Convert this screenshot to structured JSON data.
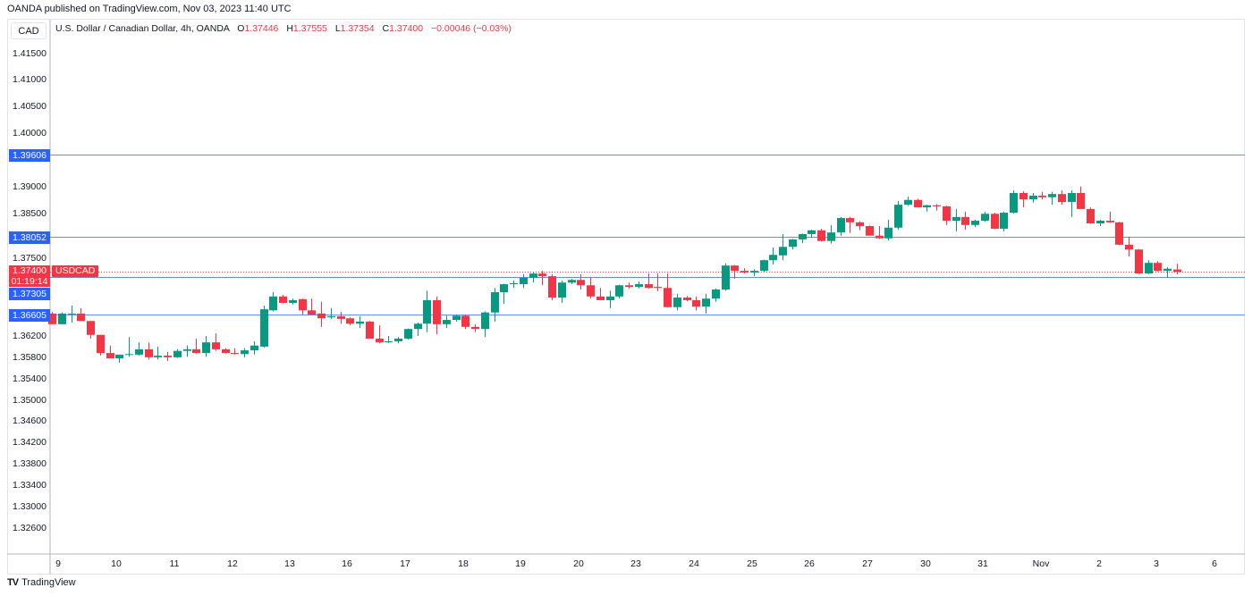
{
  "header": {
    "published": "OANDA published on TradingView.com, Nov 03, 2023 11:40 UTC"
  },
  "currency_box": "CAD",
  "legend": {
    "title": "U.S. Dollar / Canadian Dollar, 4h, OANDA",
    "o_label": "O",
    "o_value": "1.37446",
    "h_label": "H",
    "h_value": "1.37555",
    "l_label": "L",
    "l_value": "1.37354",
    "c_label": "C",
    "c_value": "1.37400",
    "change": "−0.00046 (−0.03%)"
  },
  "price_label": {
    "price": "1.37400",
    "countdown": "01:19:14",
    "symbol": "USDCAD"
  },
  "footer": {
    "logo": "TV",
    "brand": "TradingView"
  },
  "colors": {
    "up": "#089981",
    "down": "#f23645",
    "level": "#2962ff",
    "level_line": "#5b8ff9"
  },
  "chart_data": {
    "type": "candlestick",
    "title": "U.S. Dollar / Canadian Dollar, 4h, OANDA",
    "symbol": "USDCAD",
    "timeframe": "4h",
    "ylim": [
      1.3235,
      1.4195
    ],
    "y_ticks": [
      "1.41500",
      "1.41000",
      "1.40500",
      "1.40000",
      "1.39000",
      "1.38500",
      "1.37500",
      "1.36200",
      "1.35800",
      "1.35400",
      "1.35000",
      "1.34600",
      "1.34200",
      "1.33800",
      "1.33400",
      "1.33000",
      "1.32600"
    ],
    "x_ticks": [
      "9",
      "10",
      "11",
      "12",
      "13",
      "16",
      "17",
      "18",
      "19",
      "20",
      "23",
      "24",
      "25",
      "26",
      "27",
      "30",
      "31",
      "Nov",
      "2",
      "3",
      "6"
    ],
    "horizontal_levels": [
      {
        "value": 1.39606,
        "label": "1.39606"
      },
      {
        "value": 1.38052,
        "label": "1.38052"
      },
      {
        "value": 1.37305,
        "label": "1.37305"
      },
      {
        "value": 1.36605,
        "label": "1.36605"
      }
    ],
    "last_price": 1.374,
    "candles_ohlc": [
      [
        1.3662,
        1.3665,
        1.3642,
        1.3642
      ],
      [
        1.3642,
        1.3664,
        1.3642,
        1.3662
      ],
      [
        1.3662,
        1.3677,
        1.3645,
        1.3662
      ],
      [
        1.3662,
        1.3672,
        1.3648,
        1.3648
      ],
      [
        1.3648,
        1.3648,
        1.3615,
        1.3622
      ],
      [
        1.3622,
        1.3622,
        1.3583,
        1.3588
      ],
      [
        1.3588,
        1.3602,
        1.3578,
        1.3578
      ],
      [
        1.3578,
        1.3585,
        1.357,
        1.3585
      ],
      [
        1.3585,
        1.3618,
        1.3581,
        1.3586
      ],
      [
        1.3585,
        1.3608,
        1.3583,
        1.3595
      ],
      [
        1.3595,
        1.3608,
        1.3576,
        1.358
      ],
      [
        1.358,
        1.36,
        1.3576,
        1.3583
      ],
      [
        1.3583,
        1.359,
        1.3573,
        1.358
      ],
      [
        1.358,
        1.3595,
        1.3579,
        1.3592
      ],
      [
        1.3592,
        1.3602,
        1.3581,
        1.3595
      ],
      [
        1.3595,
        1.3615,
        1.3587,
        1.3588
      ],
      [
        1.3588,
        1.362,
        1.3581,
        1.3608
      ],
      [
        1.3608,
        1.3625,
        1.3592,
        1.3595
      ],
      [
        1.3595,
        1.3597,
        1.3587,
        1.3588
      ],
      [
        1.3588,
        1.3597,
        1.3585,
        1.3586
      ],
      [
        1.3586,
        1.3597,
        1.358,
        1.3593
      ],
      [
        1.3593,
        1.361,
        1.3585,
        1.3602
      ],
      [
        1.36,
        1.3677,
        1.3598,
        1.367
      ],
      [
        1.3668,
        1.3702,
        1.3666,
        1.3694
      ],
      [
        1.3694,
        1.3697,
        1.3681,
        1.3682
      ],
      [
        1.3682,
        1.369,
        1.3679,
        1.3687
      ],
      [
        1.3689,
        1.369,
        1.366,
        1.3668
      ],
      [
        1.3668,
        1.369,
        1.3659,
        1.366
      ],
      [
        1.3662,
        1.3684,
        1.3637,
        1.3653
      ],
      [
        1.3655,
        1.3672,
        1.3652,
        1.3657
      ],
      [
        1.3657,
        1.3665,
        1.3643,
        1.3652
      ],
      [
        1.3653,
        1.3655,
        1.364,
        1.3643
      ],
      [
        1.3643,
        1.3657,
        1.3635,
        1.3647
      ],
      [
        1.3647,
        1.3648,
        1.3615,
        1.3615
      ],
      [
        1.3615,
        1.364,
        1.3606,
        1.3608
      ],
      [
        1.3608,
        1.362,
        1.3607,
        1.361
      ],
      [
        1.361,
        1.3618,
        1.3606,
        1.3615
      ],
      [
        1.3615,
        1.3634,
        1.3613,
        1.3633
      ],
      [
        1.3633,
        1.3645,
        1.362,
        1.3643
      ],
      [
        1.3643,
        1.3705,
        1.3627,
        1.3687
      ],
      [
        1.3687,
        1.3694,
        1.3623,
        1.3642
      ],
      [
        1.3642,
        1.3658,
        1.3635,
        1.365
      ],
      [
        1.365,
        1.366,
        1.3647,
        1.3658
      ],
      [
        1.3658,
        1.366,
        1.3633,
        1.3637
      ],
      [
        1.3637,
        1.3642,
        1.3627,
        1.3633
      ],
      [
        1.3633,
        1.3666,
        1.3618,
        1.3664
      ],
      [
        1.3664,
        1.371,
        1.3647,
        1.3702
      ],
      [
        1.3702,
        1.3718,
        1.368,
        1.3717
      ],
      [
        1.3717,
        1.3724,
        1.371,
        1.3719
      ],
      [
        1.3717,
        1.3736,
        1.371,
        1.3729
      ],
      [
        1.3729,
        1.3739,
        1.372,
        1.3737
      ],
      [
        1.3737,
        1.3742,
        1.3715,
        1.3732
      ],
      [
        1.3732,
        1.3736,
        1.3687,
        1.3692
      ],
      [
        1.3692,
        1.3724,
        1.3682,
        1.372
      ],
      [
        1.372,
        1.3727,
        1.3717,
        1.3725
      ],
      [
        1.3725,
        1.3736,
        1.3707,
        1.3715
      ],
      [
        1.3715,
        1.3731,
        1.369,
        1.3694
      ],
      [
        1.3694,
        1.371,
        1.3687,
        1.3687
      ],
      [
        1.3687,
        1.3705,
        1.3672,
        1.3694
      ],
      [
        1.3694,
        1.3716,
        1.369,
        1.3715
      ],
      [
        1.3715,
        1.372,
        1.3709,
        1.3712
      ],
      [
        1.3712,
        1.3722,
        1.3709,
        1.3717
      ],
      [
        1.3717,
        1.3737,
        1.3709,
        1.371
      ],
      [
        1.3712,
        1.3737,
        1.3704,
        1.371
      ],
      [
        1.371,
        1.3737,
        1.3673,
        1.3674
      ],
      [
        1.3674,
        1.3699,
        1.3668,
        1.3692
      ],
      [
        1.3692,
        1.3695,
        1.3685,
        1.3687
      ],
      [
        1.3687,
        1.3694,
        1.3668,
        1.3675
      ],
      [
        1.3675,
        1.3699,
        1.3662,
        1.369
      ],
      [
        1.369,
        1.3709,
        1.3684,
        1.3707
      ],
      [
        1.3707,
        1.3756,
        1.3705,
        1.3752
      ],
      [
        1.3752,
        1.3753,
        1.3727,
        1.3742
      ],
      [
        1.3742,
        1.3747,
        1.3737,
        1.3739
      ],
      [
        1.3739,
        1.3745,
        1.3732,
        1.3742
      ],
      [
        1.3742,
        1.3763,
        1.374,
        1.3762
      ],
      [
        1.3762,
        1.3786,
        1.3754,
        1.3772
      ],
      [
        1.3771,
        1.3811,
        1.3762,
        1.3787
      ],
      [
        1.3787,
        1.3802,
        1.3782,
        1.3801
      ],
      [
        1.3801,
        1.3812,
        1.3794,
        1.3811
      ],
      [
        1.3811,
        1.3819,
        1.3804,
        1.3818
      ],
      [
        1.3818,
        1.3821,
        1.3797,
        1.3798
      ],
      [
        1.3798,
        1.3828,
        1.3793,
        1.3814
      ],
      [
        1.3814,
        1.3843,
        1.3808,
        1.3841
      ],
      [
        1.3841,
        1.3843,
        1.3813,
        1.3833
      ],
      [
        1.3833,
        1.3835,
        1.3818,
        1.3826
      ],
      [
        1.3826,
        1.3827,
        1.3808,
        1.3808
      ],
      [
        1.3808,
        1.3826,
        1.3802,
        1.3803
      ],
      [
        1.3803,
        1.3838,
        1.3799,
        1.3823
      ],
      [
        1.3823,
        1.3873,
        1.3819,
        1.3866
      ],
      [
        1.3866,
        1.3881,
        1.3864,
        1.3875
      ],
      [
        1.3875,
        1.3877,
        1.3861,
        1.3861
      ],
      [
        1.3861,
        1.3866,
        1.3853,
        1.3865
      ],
      [
        1.3865,
        1.3867,
        1.3855,
        1.3863
      ],
      [
        1.3863,
        1.3864,
        1.3828,
        1.3836
      ],
      [
        1.3836,
        1.3858,
        1.3816,
        1.3843
      ],
      [
        1.3843,
        1.3853,
        1.3819,
        1.3828
      ],
      [
        1.3828,
        1.3838,
        1.3824,
        1.3836
      ],
      [
        1.3836,
        1.3853,
        1.3834,
        1.3849
      ],
      [
        1.3849,
        1.3851,
        1.382,
        1.3821
      ],
      [
        1.3821,
        1.3853,
        1.3816,
        1.3851
      ],
      [
        1.3851,
        1.3893,
        1.3849,
        1.3888
      ],
      [
        1.3888,
        1.3891,
        1.3861,
        1.3876
      ],
      [
        1.3876,
        1.3888,
        1.387,
        1.3883
      ],
      [
        1.3883,
        1.389,
        1.3876,
        1.388
      ],
      [
        1.388,
        1.389,
        1.3866,
        1.3886
      ],
      [
        1.3886,
        1.3893,
        1.3866,
        1.3871
      ],
      [
        1.3871,
        1.3893,
        1.3843,
        1.3888
      ],
      [
        1.3888,
        1.39,
        1.3858,
        1.3858
      ],
      [
        1.3858,
        1.3861,
        1.383,
        1.3831
      ],
      [
        1.3831,
        1.3838,
        1.3826,
        1.3836
      ],
      [
        1.3836,
        1.3853,
        1.3832,
        1.3833
      ],
      [
        1.3833,
        1.3834,
        1.379,
        1.3791
      ],
      [
        1.3791,
        1.3806,
        1.3769,
        1.3782
      ],
      [
        1.3782,
        1.3783,
        1.3736,
        1.3737
      ],
      [
        1.3737,
        1.3762,
        1.3736,
        1.3757
      ],
      [
        1.3757,
        1.376,
        1.3741,
        1.3742
      ],
      [
        1.3742,
        1.3749,
        1.3729,
        1.3746
      ],
      [
        1.37446,
        1.37555,
        1.37354,
        1.374
      ]
    ]
  }
}
